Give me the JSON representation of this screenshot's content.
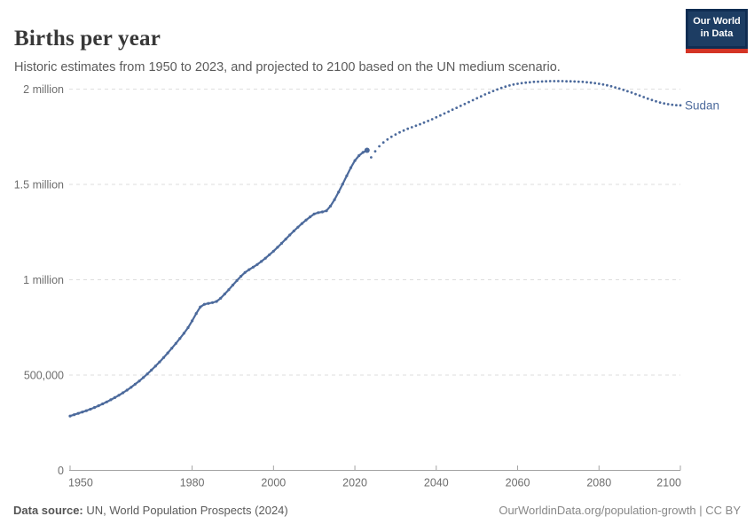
{
  "header": {
    "title": "Births per year",
    "subtitle": "Historic estimates from 1950 to 2023, and projected to 2100 based on the UN medium scenario."
  },
  "logo": {
    "line1": "Our World",
    "line2": "in Data",
    "bg_color": "#1d3d63",
    "bar_color": "#d43425"
  },
  "footer": {
    "source_label": "Data source:",
    "source_text": " UN, World Population Prospects (2024)",
    "link_text": "OurWorldinData.org/population-growth | CC BY"
  },
  "chart_data": {
    "type": "line",
    "title": "Births per year",
    "entity": "Sudan",
    "xlabel": "",
    "ylabel": "",
    "xlim": [
      1950,
      2100
    ],
    "ylim": [
      0,
      2000000
    ],
    "grid": "horizontal-dashed",
    "legend": "none (entity label at line end)",
    "xticks": [
      1950,
      1980,
      2000,
      2020,
      2040,
      2060,
      2080,
      2100
    ],
    "yticks": [
      {
        "value": 0,
        "label": "0"
      },
      {
        "value": 500000,
        "label": "500,000"
      },
      {
        "value": 1000000,
        "label": "1 million"
      },
      {
        "value": 1500000,
        "label": "1.5 million"
      },
      {
        "value": 2000000,
        "label": "2 million"
      }
    ],
    "colors": {
      "line": "#4c6a9c"
    },
    "series": [
      {
        "name": "Sudan — historic estimates",
        "style": "solid",
        "years": [
          1950,
          1951,
          1952,
          1953,
          1954,
          1955,
          1956,
          1957,
          1958,
          1959,
          1960,
          1961,
          1962,
          1963,
          1964,
          1965,
          1966,
          1967,
          1968,
          1969,
          1970,
          1971,
          1972,
          1973,
          1974,
          1975,
          1976,
          1977,
          1978,
          1979,
          1980,
          1981,
          1982,
          1983,
          1984,
          1985,
          1986,
          1987,
          1988,
          1989,
          1990,
          1991,
          1992,
          1993,
          1994,
          1995,
          1996,
          1997,
          1998,
          1999,
          2000,
          2001,
          2002,
          2003,
          2004,
          2005,
          2006,
          2007,
          2008,
          2009,
          2010,
          2011,
          2012,
          2013,
          2014,
          2015,
          2016,
          2017,
          2018,
          2019,
          2020,
          2021,
          2022,
          2023
        ],
        "values": [
          285000,
          292000,
          299000,
          306000,
          313000,
          321000,
          330000,
          339000,
          349000,
          359000,
          370000,
          382000,
          394000,
          407000,
          421000,
          436000,
          452000,
          469000,
          487000,
          506000,
          526000,
          547000,
          569000,
          592000,
          616000,
          641000,
          666000,
          692000,
          719000,
          749000,
          784000,
          823000,
          857000,
          871000,
          876000,
          880000,
          886000,
          903000,
          925000,
          948000,
          972000,
          996000,
          1018000,
          1038000,
          1053000,
          1066000,
          1080000,
          1096000,
          1113000,
          1131000,
          1150000,
          1170000,
          1191000,
          1213000,
          1235000,
          1256000,
          1276000,
          1295000,
          1313000,
          1330000,
          1345000,
          1352000,
          1356000,
          1362000,
          1386000,
          1420000,
          1460000,
          1502000,
          1545000,
          1588000,
          1625000,
          1651000,
          1668000,
          1679000
        ]
      },
      {
        "name": "Sudan — UN medium scenario projection",
        "style": "dotted",
        "years": [
          2024,
          2025,
          2026,
          2027,
          2028,
          2029,
          2030,
          2031,
          2032,
          2033,
          2034,
          2035,
          2036,
          2037,
          2038,
          2039,
          2040,
          2041,
          2042,
          2043,
          2044,
          2045,
          2046,
          2047,
          2048,
          2049,
          2050,
          2051,
          2052,
          2053,
          2054,
          2055,
          2056,
          2057,
          2058,
          2059,
          2060,
          2061,
          2062,
          2063,
          2064,
          2065,
          2066,
          2067,
          2068,
          2069,
          2070,
          2071,
          2072,
          2073,
          2074,
          2075,
          2076,
          2077,
          2078,
          2079,
          2080,
          2081,
          2082,
          2083,
          2084,
          2085,
          2086,
          2087,
          2088,
          2089,
          2090,
          2091,
          2092,
          2093,
          2094,
          2095,
          2096,
          2097,
          2098,
          2099,
          2100
        ],
        "values": [
          1642000,
          1674000,
          1700000,
          1720000,
          1736000,
          1750000,
          1762000,
          1773000,
          1783000,
          1792000,
          1800000,
          1808000,
          1816000,
          1824000,
          1833000,
          1842000,
          1852000,
          1862000,
          1872000,
          1882000,
          1892000,
          1902000,
          1912000,
          1922000,
          1932000,
          1942000,
          1952000,
          1962000,
          1972000,
          1981000,
          1990000,
          1998000,
          2006000,
          2013000,
          2019000,
          2024000,
          2028000,
          2031000,
          2034000,
          2036000,
          2038000,
          2039000,
          2040000,
          2041000,
          2042000,
          2042000,
          2042000,
          2042000,
          2041000,
          2041000,
          2040000,
          2039000,
          2038000,
          2036000,
          2034000,
          2031000,
          2028000,
          2024000,
          2020000,
          2015000,
          2009000,
          2003000,
          1996000,
          1989000,
          1982000,
          1974000,
          1966000,
          1958000,
          1950000,
          1943000,
          1936000,
          1930000,
          1925000,
          1921000,
          1918000,
          1916000,
          1915000
        ]
      }
    ]
  }
}
